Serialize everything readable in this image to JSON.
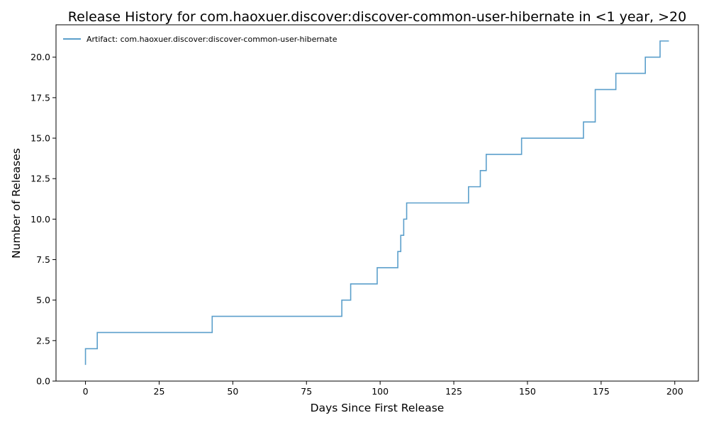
{
  "chart_data": {
    "type": "line",
    "drawstyle": "steps-post",
    "title": "Release History for com.haoxuer.discover:discover-common-user-hibernate in <1 year, >20",
    "xlabel": "Days Since First Release",
    "ylabel": "Number of Releases",
    "xlim": [
      -10,
      208
    ],
    "ylim": [
      0,
      22
    ],
    "xticks": [
      0,
      25,
      50,
      75,
      100,
      125,
      150,
      175,
      200
    ],
    "yticks": [
      0.0,
      2.5,
      5.0,
      7.5,
      10.0,
      12.5,
      15.0,
      17.5,
      20.0
    ],
    "ytick_labels": [
      "0.0",
      "2.5",
      "5.0",
      "7.5",
      "10.0",
      "12.5",
      "15.0",
      "17.5",
      "20.0"
    ],
    "grid": false,
    "legend": "top-left",
    "series": [
      {
        "name": "Artifact: com.haoxuer.discover:discover-common-user-hibernate",
        "color": "#5b9fcb",
        "x": [
          0,
          0,
          4,
          43,
          87,
          90,
          99,
          106,
          107,
          108,
          109,
          130,
          134,
          136,
          148,
          169,
          173,
          180,
          190,
          195,
          198
        ],
        "y": [
          1,
          2,
          3,
          4,
          5,
          6,
          7,
          8,
          9,
          10,
          11,
          12,
          13,
          14,
          15,
          16,
          18,
          19,
          20,
          21,
          21
        ]
      }
    ]
  }
}
